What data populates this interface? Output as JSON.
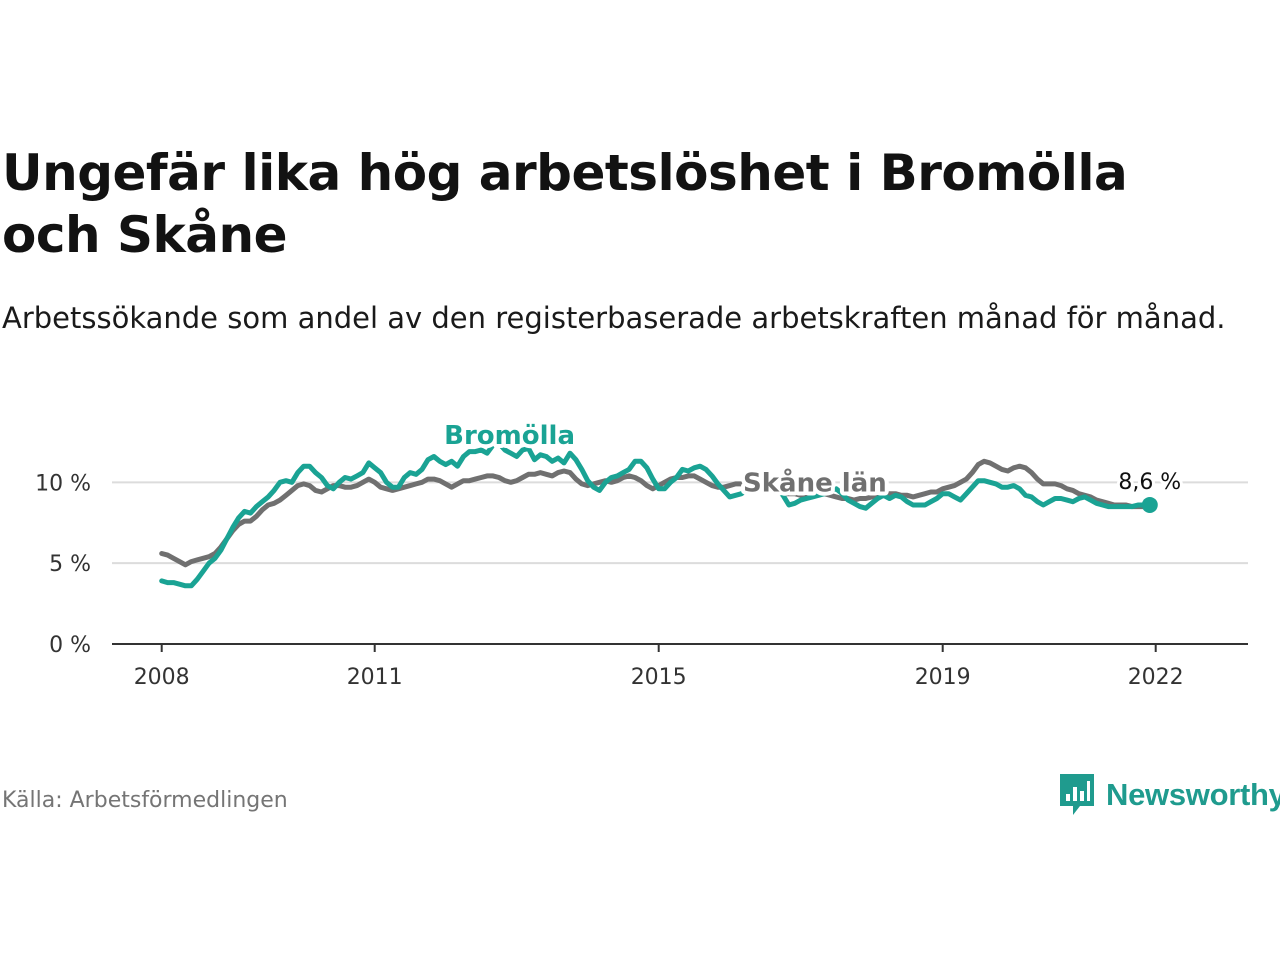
{
  "title": "Ungefär lika hög arbetslöshet i Bromölla och Skåne",
  "subtitle": "Arbetssökande som andel av den registerbaserade arbetskraften månad för månad.",
  "source": "Källa: Arbetsförmedlingen",
  "brand": "Newsworthy",
  "chart_data": {
    "type": "line",
    "title": "Ungefär lika hög arbetslöshet i Bromölla och Skåne",
    "xlabel": "",
    "ylabel": "",
    "x_start_year": 2008,
    "x_range": [
      2007.3,
      2023.3
    ],
    "ylim": [
      0,
      12
    ],
    "y_ticks": [
      0,
      5,
      10
    ],
    "y_tick_labels": [
      "0 %",
      "5 %",
      "10 %"
    ],
    "x_ticks": [
      2008,
      2011,
      2015,
      2019,
      2022
    ],
    "x_tick_labels": [
      "2008",
      "2011",
      "2015",
      "2019",
      "2022"
    ],
    "grid": "horizontal",
    "end_label": "8,6 %",
    "series": [
      {
        "name": "Bromölla",
        "color": "#1aa394",
        "label_anchor": [
          2012.9,
          13.0
        ],
        "values": [
          3.9,
          3.8,
          3.8,
          3.7,
          3.6,
          3.6,
          4.0,
          4.5,
          5.0,
          5.3,
          5.8,
          6.5,
          7.2,
          7.8,
          8.2,
          8.1,
          8.5,
          8.8,
          9.1,
          9.5,
          10.0,
          10.1,
          10.0,
          10.6,
          11.0,
          11.0,
          10.6,
          10.3,
          9.8,
          9.6,
          10.0,
          10.3,
          10.2,
          10.4,
          10.6,
          11.2,
          10.9,
          10.6,
          10.0,
          9.7,
          9.7,
          10.3,
          10.6,
          10.5,
          10.8,
          11.4,
          11.6,
          11.3,
          11.1,
          11.3,
          11.0,
          11.6,
          11.9,
          11.9,
          12.0,
          11.8,
          12.3,
          12.4,
          12.0,
          11.8,
          11.6,
          12.0,
          12.1,
          11.4,
          11.7,
          11.6,
          11.3,
          11.5,
          11.2,
          11.8,
          11.4,
          10.8,
          10.1,
          9.7,
          9.5,
          10.0,
          10.3,
          10.4,
          10.6,
          10.8,
          11.3,
          11.3,
          10.9,
          10.2,
          9.6,
          9.6,
          10.0,
          10.3,
          10.8,
          10.7,
          10.9,
          11.0,
          10.8,
          10.4,
          9.9,
          9.5,
          9.1,
          9.2,
          9.3,
          9.6,
          9.8,
          9.8,
          9.6,
          9.6,
          9.6,
          9.2,
          8.6,
          8.7,
          8.9,
          9.0,
          9.1,
          9.2,
          9.3,
          9.5,
          9.6,
          9.3,
          8.9,
          8.7,
          8.5,
          8.4,
          8.7,
          9.0,
          9.2,
          9.0,
          9.2,
          9.1,
          8.8,
          8.6,
          8.6,
          8.6,
          8.8,
          9.0,
          9.3,
          9.3,
          9.1,
          8.9,
          9.3,
          9.7,
          10.1,
          10.1,
          10.0,
          9.9,
          9.7,
          9.7,
          9.8,
          9.6,
          9.2,
          9.1,
          8.8,
          8.6,
          8.8,
          9.0,
          9.0,
          8.9,
          8.8,
          9.0,
          9.1,
          8.9,
          8.7,
          8.6,
          8.5,
          8.5,
          8.5,
          8.5,
          8.5,
          8.6,
          8.6,
          8.6
        ]
      },
      {
        "name": "Skåne län",
        "color": "#707070",
        "label_anchor": [
          2017.2,
          10.05
        ],
        "values": [
          5.6,
          5.5,
          5.3,
          5.1,
          4.9,
          5.1,
          5.2,
          5.3,
          5.4,
          5.6,
          6.0,
          6.5,
          7.0,
          7.4,
          7.6,
          7.6,
          7.9,
          8.3,
          8.6,
          8.7,
          8.9,
          9.2,
          9.5,
          9.8,
          9.9,
          9.8,
          9.5,
          9.4,
          9.6,
          9.8,
          9.8,
          9.7,
          9.7,
          9.8,
          10.0,
          10.2,
          10.0,
          9.7,
          9.6,
          9.5,
          9.6,
          9.7,
          9.8,
          9.9,
          10.0,
          10.2,
          10.2,
          10.1,
          9.9,
          9.7,
          9.9,
          10.1,
          10.1,
          10.2,
          10.3,
          10.4,
          10.4,
          10.3,
          10.1,
          10.0,
          10.1,
          10.3,
          10.5,
          10.5,
          10.6,
          10.5,
          10.4,
          10.6,
          10.7,
          10.6,
          10.2,
          9.9,
          9.8,
          9.9,
          10.0,
          10.1,
          10.0,
          10.1,
          10.3,
          10.4,
          10.3,
          10.1,
          9.8,
          9.6,
          9.8,
          10.0,
          10.2,
          10.3,
          10.3,
          10.4,
          10.4,
          10.2,
          10.0,
          9.8,
          9.7,
          9.7,
          9.8,
          9.9,
          9.9,
          9.9,
          9.8,
          9.7,
          9.6,
          9.5,
          9.4,
          9.3,
          9.3,
          9.3,
          9.2,
          9.2,
          9.3,
          9.3,
          9.3,
          9.2,
          9.1,
          9.0,
          9.0,
          8.9,
          9.0,
          9.0,
          9.1,
          9.2,
          9.2,
          9.3,
          9.3,
          9.2,
          9.2,
          9.1,
          9.2,
          9.3,
          9.4,
          9.4,
          9.6,
          9.7,
          9.8,
          10.0,
          10.2,
          10.6,
          11.1,
          11.3,
          11.2,
          11.0,
          10.8,
          10.7,
          10.9,
          11.0,
          10.9,
          10.6,
          10.2,
          9.9,
          9.9,
          9.9,
          9.8,
          9.6,
          9.5,
          9.3,
          9.2,
          9.1,
          8.9,
          8.8,
          8.7,
          8.6,
          8.6,
          8.6,
          8.5,
          8.5,
          8.5,
          8.5
        ]
      }
    ]
  }
}
